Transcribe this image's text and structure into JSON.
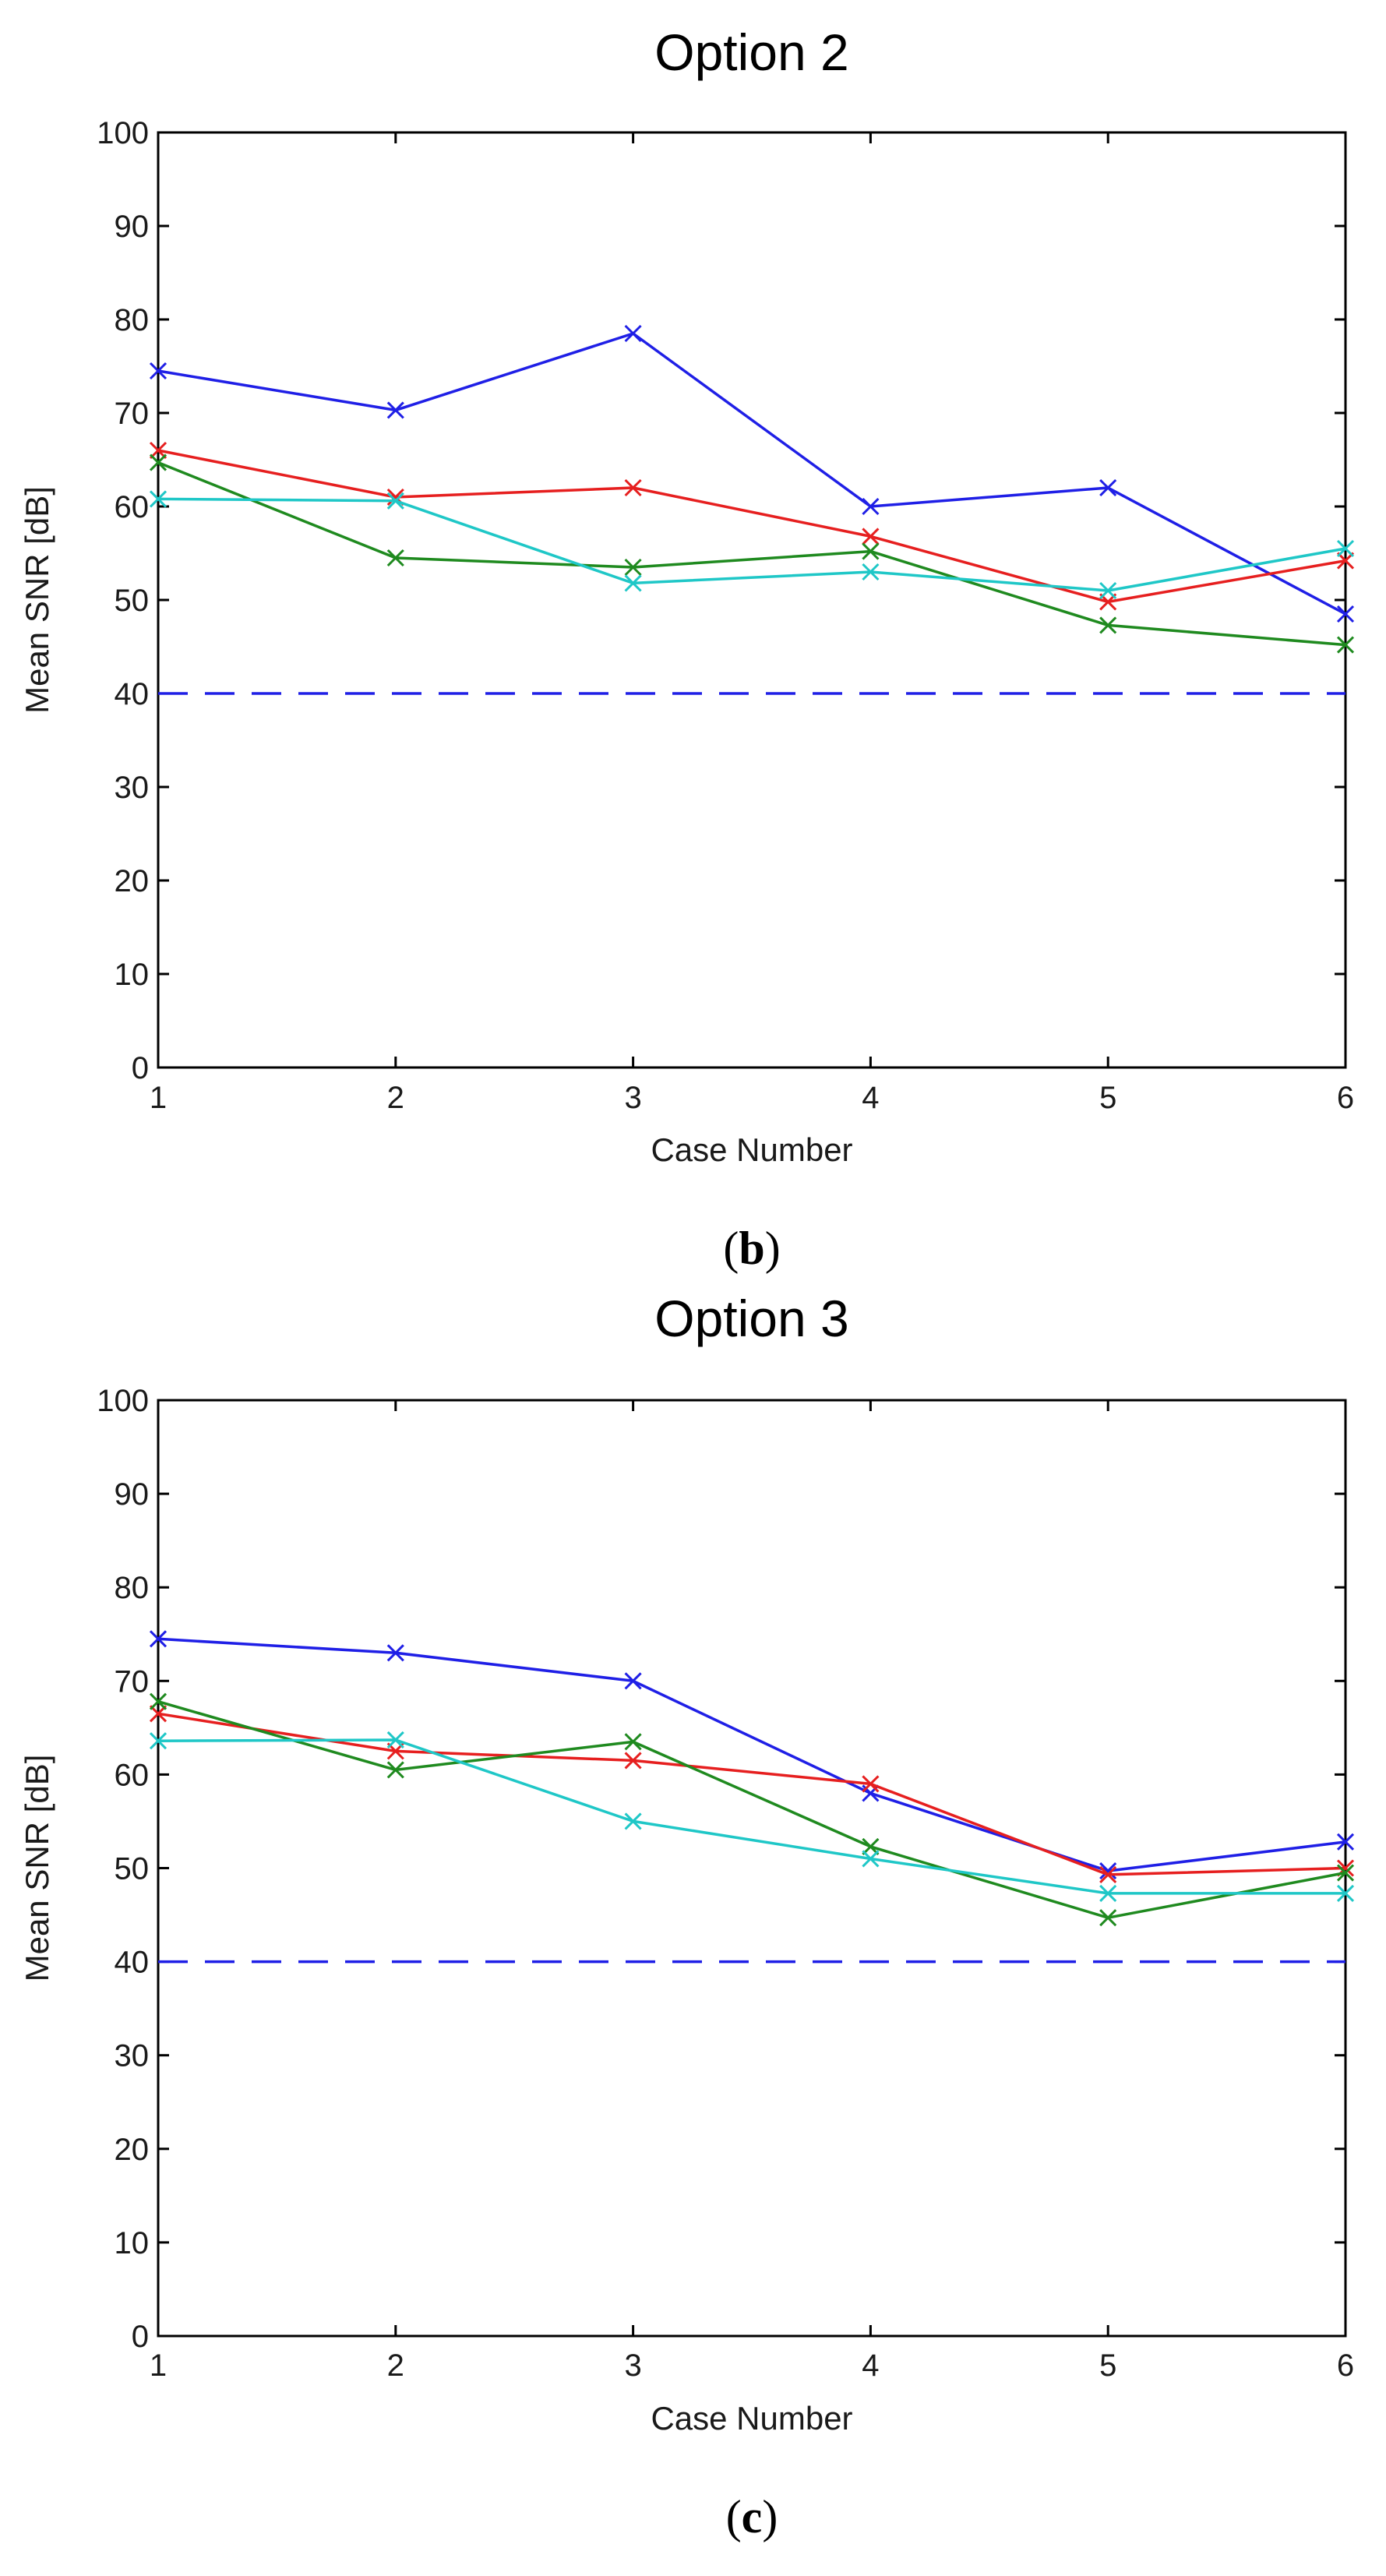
{
  "chart_data": [
    {
      "type": "line",
      "panel_id": "b",
      "panel_label": "b",
      "title": "Option 2",
      "xlabel": "Case Number",
      "ylabel": "Mean SNR [dB]",
      "xlim": [
        1,
        6
      ],
      "ylim": [
        0,
        100
      ],
      "xticks": [
        1,
        2,
        3,
        4,
        5,
        6
      ],
      "yticks": [
        0,
        10,
        20,
        30,
        40,
        50,
        60,
        70,
        80,
        90,
        100
      ],
      "grid": false,
      "x": [
        1,
        2,
        3,
        4,
        5,
        6
      ],
      "series": [
        {
          "name": "blue",
          "color": "#1f1fe6",
          "marker": "x",
          "values": [
            74.5,
            70.3,
            78.5,
            60.0,
            62.0,
            48.5
          ]
        },
        {
          "name": "red",
          "color": "#e61f1f",
          "marker": "x",
          "values": [
            66.0,
            61.0,
            62.0,
            56.8,
            49.8,
            54.2
          ]
        },
        {
          "name": "green",
          "color": "#1f8a1f",
          "marker": "x",
          "values": [
            64.7,
            54.5,
            53.5,
            55.2,
            47.3,
            45.2
          ]
        },
        {
          "name": "cyan",
          "color": "#1fc7c7",
          "marker": "x",
          "values": [
            60.8,
            60.6,
            51.8,
            53.0,
            51.0,
            55.5
          ]
        }
      ],
      "reference_lines": [
        {
          "value": 40,
          "style": "dashed",
          "color": "#1f1fe6"
        }
      ]
    },
    {
      "type": "line",
      "panel_id": "c",
      "panel_label": "c",
      "title": "Option 3",
      "xlabel": "Case Number",
      "ylabel": "Mean SNR [dB]",
      "xlim": [
        1,
        6
      ],
      "ylim": [
        0,
        100
      ],
      "xticks": [
        1,
        2,
        3,
        4,
        5,
        6
      ],
      "yticks": [
        0,
        10,
        20,
        30,
        40,
        50,
        60,
        70,
        80,
        90,
        100
      ],
      "grid": false,
      "x": [
        1,
        2,
        3,
        4,
        5,
        6
      ],
      "series": [
        {
          "name": "blue",
          "color": "#1f1fe6",
          "marker": "x",
          "values": [
            74.5,
            73.0,
            70.0,
            58.0,
            49.7,
            52.8
          ]
        },
        {
          "name": "red",
          "color": "#e61f1f",
          "marker": "x",
          "values": [
            66.5,
            62.5,
            61.5,
            59.0,
            49.3,
            50.0
          ]
        },
        {
          "name": "green",
          "color": "#1f8a1f",
          "marker": "x",
          "values": [
            67.8,
            60.5,
            63.5,
            52.3,
            44.7,
            49.5
          ]
        },
        {
          "name": "cyan",
          "color": "#1fc7c7",
          "marker": "x",
          "values": [
            63.6,
            63.7,
            55.0,
            51.0,
            47.3,
            47.3
          ]
        }
      ],
      "reference_lines": [
        {
          "value": 40,
          "style": "dashed",
          "color": "#1f1fe6"
        }
      ]
    }
  ]
}
